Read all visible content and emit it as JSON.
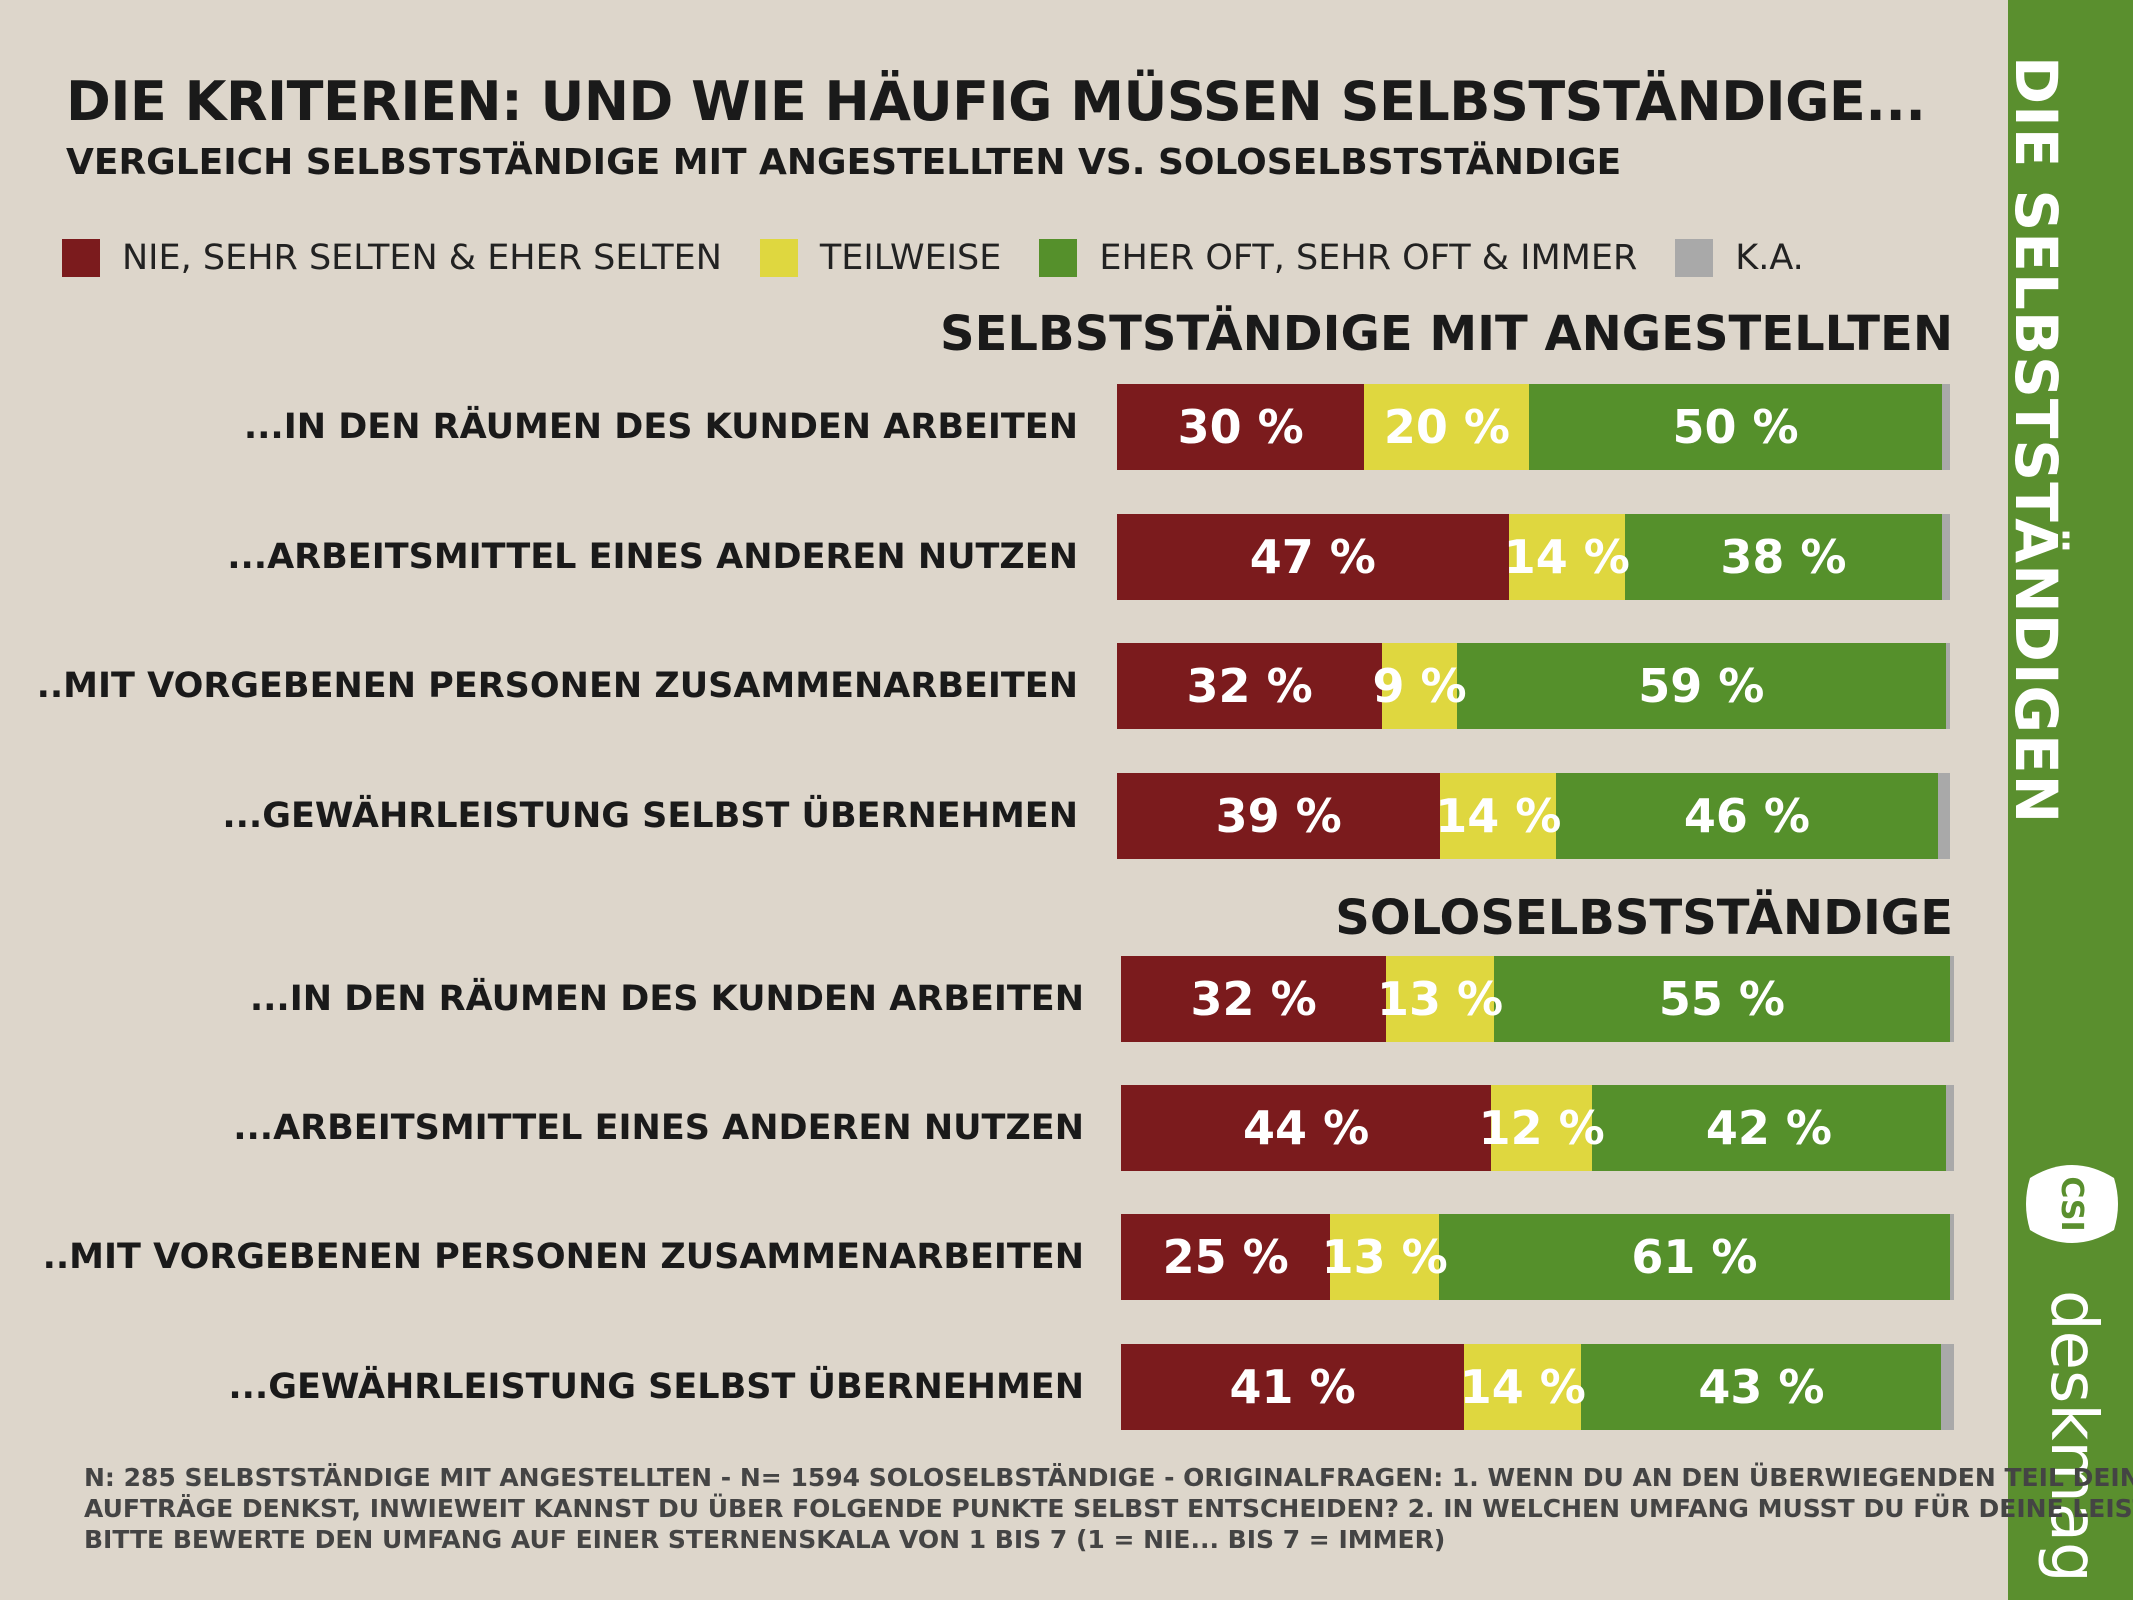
{
  "header": {
    "title": "DIE KRITERIEN: UND WIE HÄUFIG MÜSSEN SELBSTSTÄNDIGE...",
    "subtitle": "VERGLEICH SELBSTSTÄNDIGE MIT ANGESTELLTEN VS. SOLOSELBSTSTÄNDIGE"
  },
  "legend": [
    {
      "label": "NIE, SEHR SELTEN & EHER SELTEN",
      "color": "#7b1b1d"
    },
    {
      "label": "TEILWEISE",
      "color": "#dfd73f"
    },
    {
      "label": "EHER OFT, SEHR OFT & IMMER",
      "color": "#55902b"
    },
    {
      "label": "K.A.",
      "color": "#a9a9a9"
    }
  ],
  "sidebar": {
    "title": "DIE SELBSTSTÄNDIGEN",
    "logo_badge": "CSI",
    "logo_text": "deskmag",
    "color": "#5a8f2e"
  },
  "footnote": [
    "N: 285 SELBSTSTÄNDIGE MIT ANGESTELLTEN - N= 1594 SOLOSELBSTÄNDIGE - ORIGINALFRAGEN: 1. WENN DU AN DEN ÜBERWIEGENDEN TEIL DEINER",
    "AUFTRÄGE DENKST, INWIEWEIT KANNST DU ÜBER FOLGENDE PUNKTE SELBST ENTSCHEIDEN? 2. IN WELCHEN UMFANG MUSST DU FÜR DEINE LEISTUNG.",
    "BITTE BEWERTE DEN UMFANG AUF EINER STERNENSKALA VON 1 BIS 7 (1 = NIE... BIS 7 = IMMER)"
  ],
  "chart_data": [
    {
      "type": "bar",
      "orientation": "horizontal",
      "stacked": true,
      "title": "SELBSTSTÄNDIGE MIT ANGESTELLTEN",
      "categories": [
        "...IN DEN RÄUMEN DES KUNDEN ARBEITEN",
        "...ARBEITSMITTEL EINES ANDEREN NUTZEN",
        "..MIT VORGEBENEN PERSONEN ZUSAMMENARBEITEN",
        "...GEWÄHRLEISTUNG SELBST ÜBERNEHMEN"
      ],
      "series": [
        {
          "name": "NIE, SEHR SELTEN & EHER SELTEN",
          "values": [
            30,
            47,
            32,
            39
          ],
          "color": "#7b1b1d"
        },
        {
          "name": "TEILWEISE",
          "values": [
            20,
            14,
            9,
            14
          ],
          "color": "#dfd73f"
        },
        {
          "name": "EHER OFT, SEHR OFT & IMMER",
          "values": [
            50,
            38,
            59,
            46
          ],
          "color": "#55902b"
        },
        {
          "name": "K.A.",
          "values": [
            1,
            1,
            0.5,
            1.5
          ],
          "color": "#a9a9a9",
          "show_label": false
        }
      ],
      "unit": "%"
    },
    {
      "type": "bar",
      "orientation": "horizontal",
      "stacked": true,
      "title": "SOLOSELBSTSTÄNDIGE",
      "categories": [
        "...IN DEN RÄUMEN DES KUNDEN ARBEITEN",
        "...ARBEITSMITTEL EINES ANDEREN NUTZEN",
        "..MIT VORGEBENEN PERSONEN ZUSAMMENARBEITEN",
        "...GEWÄHRLEISTUNG SELBST ÜBERNEHMEN"
      ],
      "series": [
        {
          "name": "NIE, SEHR SELTEN & EHER SELTEN",
          "values": [
            32,
            44,
            25,
            41
          ],
          "color": "#7b1b1d"
        },
        {
          "name": "TEILWEISE",
          "values": [
            13,
            12,
            13,
            14
          ],
          "color": "#dfd73f"
        },
        {
          "name": "EHER OFT, SEHR OFT & IMMER",
          "values": [
            55,
            42,
            61,
            43
          ],
          "color": "#55902b"
        },
        {
          "name": "K.A.",
          "values": [
            0.5,
            1,
            0.5,
            1.5
          ],
          "color": "#a9a9a9",
          "show_label": false
        }
      ],
      "unit": "%"
    }
  ]
}
